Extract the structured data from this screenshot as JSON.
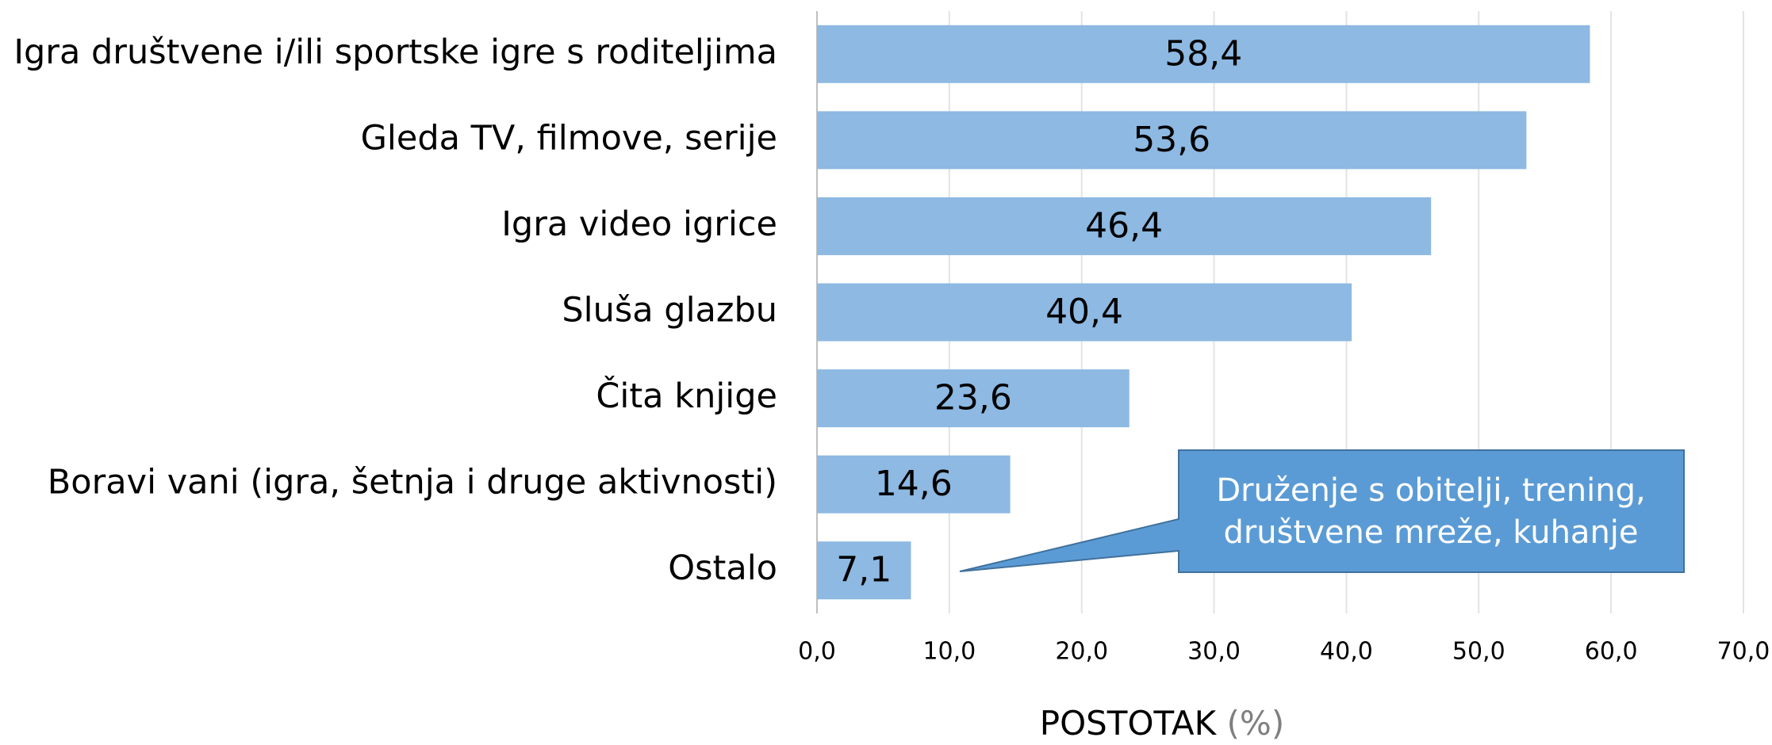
{
  "chart_data": {
    "type": "bar",
    "orientation": "horizontal",
    "categories": [
      "Igra društvene i/ili sportske igre s roditeljima",
      "Gleda TV, filmove, serije",
      "Igra video igrice",
      "Sluša glazbu",
      "Čita knjige",
      "Boravi vani (igra, šetnja i druge aktivnosti)",
      "Ostalo"
    ],
    "values": [
      58.4,
      53.6,
      46.4,
      40.4,
      23.6,
      14.6,
      7.1
    ],
    "value_labels": [
      "58,4",
      "53,6",
      "46,4",
      "40,4",
      "23,6",
      "14,6",
      "7,1"
    ],
    "color": "#8db9e2",
    "xlim": [
      0,
      70
    ],
    "xticks": [
      {
        "value": 0,
        "label": "0,0"
      },
      {
        "value": 10,
        "label": "10,0"
      },
      {
        "value": 20,
        "label": "20,0"
      },
      {
        "value": 30,
        "label": "30,0"
      },
      {
        "value": 40,
        "label": "40,0"
      },
      {
        "value": 50,
        "label": "50,0"
      },
      {
        "value": 60,
        "label": "60,0"
      },
      {
        "value": 70,
        "label": "70,0"
      }
    ],
    "grid": true,
    "x_label": "POSTOTAK",
    "x_label_unit": "(%)",
    "annotation": {
      "lines": [
        "Druženje s obitelji, trening,",
        "društvene mreže, kuhanje"
      ],
      "color": "#5b9bd5"
    }
  }
}
